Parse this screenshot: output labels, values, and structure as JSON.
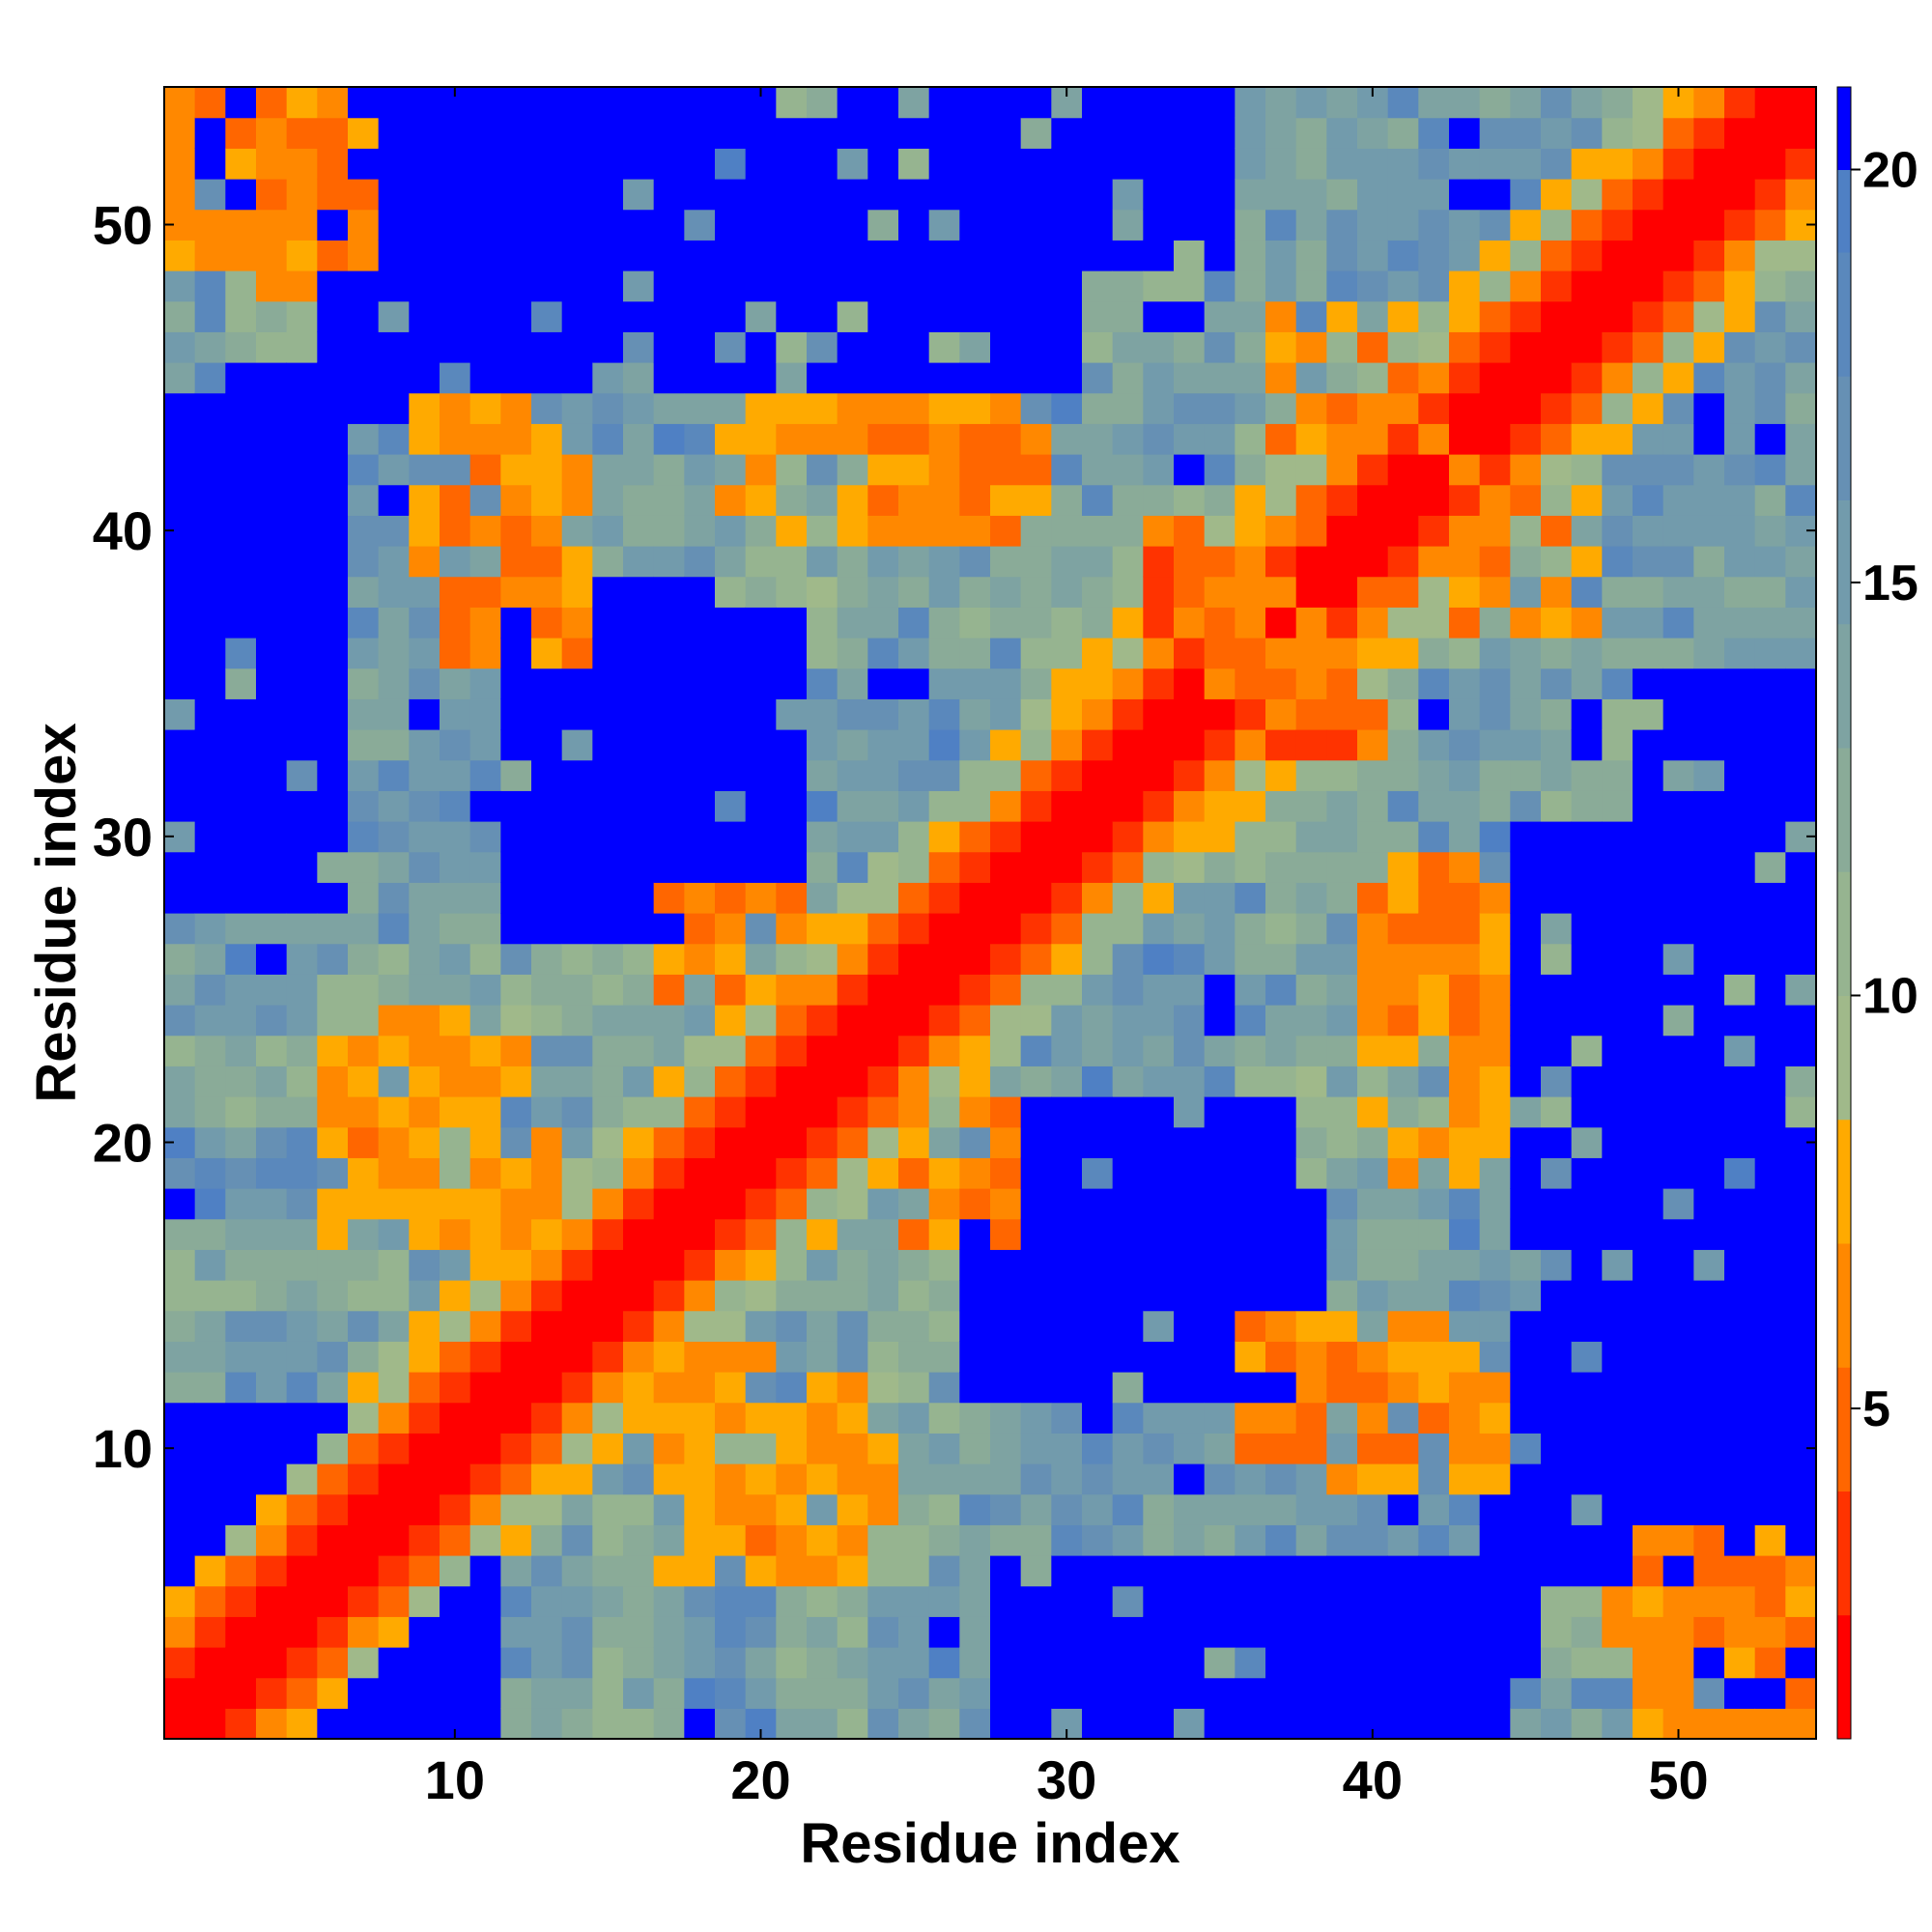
{
  "chart_data": {
    "type": "heatmap",
    "title": "",
    "xlabel": "Residue index",
    "ylabel": "Residue index",
    "n_residues": 54,
    "x_range": [
      1,
      54
    ],
    "y_range": [
      1,
      54
    ],
    "x_ticks": [
      10,
      20,
      30,
      40,
      50
    ],
    "y_ticks": [
      10,
      20,
      30,
      40,
      50
    ],
    "grid": false,
    "colorbar": {
      "placement": "right",
      "range": [
        1,
        21
      ],
      "ticks": [
        5,
        10,
        15,
        20
      ],
      "bins": [
        {
          "from": 1,
          "to": 2.5,
          "color": "#ff0000"
        },
        {
          "from": 2.5,
          "to": 4,
          "color": "#ff3300"
        },
        {
          "from": 4,
          "to": 5.5,
          "color": "#ff6600"
        },
        {
          "from": 5.5,
          "to": 7,
          "color": "#ff8800"
        },
        {
          "from": 7,
          "to": 8.5,
          "color": "#ffaa00"
        },
        {
          "from": 8.5,
          "to": 10,
          "color": "#a0b98a"
        },
        {
          "from": 10,
          "to": 11.5,
          "color": "#96b490"
        },
        {
          "from": 11.5,
          "to": 13,
          "color": "#8aab98"
        },
        {
          "from": 13,
          "to": 14.5,
          "color": "#7ea3a2"
        },
        {
          "from": 14.5,
          "to": 16,
          "color": "#729bac"
        },
        {
          "from": 16,
          "to": 17.5,
          "color": "#6690b4"
        },
        {
          "from": 17.5,
          "to": 19,
          "color": "#5a88bc"
        },
        {
          "from": 19,
          "to": 20,
          "color": "#4f80c4"
        },
        {
          "from": 20,
          "to": 21,
          "color": "#0000ff"
        }
      ]
    },
    "value_model": "Symmetric pairwise residue distance matrix: diagonal band (|i-j| <= 2) ~1-3; near-diagonal and contact patches ~4-9; background ~9-19; saturated (>=20) regions shown in blue.",
    "contact_patches": [
      {
        "i": [
          1,
          5
        ],
        "j": [
          49,
          54
        ],
        "value": 6
      },
      {
        "i": [
          6,
          13
        ],
        "j": [
          17,
          23
        ],
        "value": 7
      },
      {
        "i": [
          9,
          13
        ],
        "j": [
          38,
          44
        ],
        "value": 7
      },
      {
        "i": [
          17,
          21
        ],
        "j": [
          25,
          28
        ],
        "value": 6
      },
      {
        "i": [
          19,
          27
        ],
        "j": [
          40,
          44
        ],
        "value": 7
      },
      {
        "i": [
          20,
          24
        ],
        "j": [
          7,
          10
        ],
        "value": 6
      },
      {
        "i": [
          36,
          42
        ],
        "j": [
          10,
          14
        ],
        "value": 6
      },
      {
        "i": [
          40,
          44
        ],
        "j": [
          24,
          29
        ],
        "value": 6
      },
      {
        "i": [
          35,
          40
        ],
        "j": [
          33,
          38
        ],
        "value": 5
      },
      {
        "i": [
          43,
          47
        ],
        "j": [
          37,
          42
        ],
        "value": 6
      },
      {
        "i": [
          48,
          54
        ],
        "j": [
          3,
          7
        ],
        "value": 6
      }
    ],
    "blue_regions": [
      {
        "i": [
          1,
          11
        ],
        "j": [
          1,
          8
        ],
        "note": "lower-left corner saturated except diagonal"
      },
      {
        "i": [
          27,
          38
        ],
        "j": [
          12,
          18
        ]
      },
      {
        "i": [
          12,
          21
        ],
        "j": [
          28,
          37
        ]
      },
      {
        "i": [
          45,
          54
        ],
        "j": [
          12,
          30
        ]
      },
      {
        "i": [
          49,
          54
        ],
        "j": [
          20,
          35
        ]
      },
      {
        "i": [
          6,
          12
        ],
        "j": [
          44,
          54
        ]
      },
      {
        "i": [
          1,
          6
        ],
        "j": [
          28,
          45
        ]
      },
      {
        "i": [
          50,
          54
        ],
        "j": [
          1,
          11
        ]
      }
    ]
  }
}
